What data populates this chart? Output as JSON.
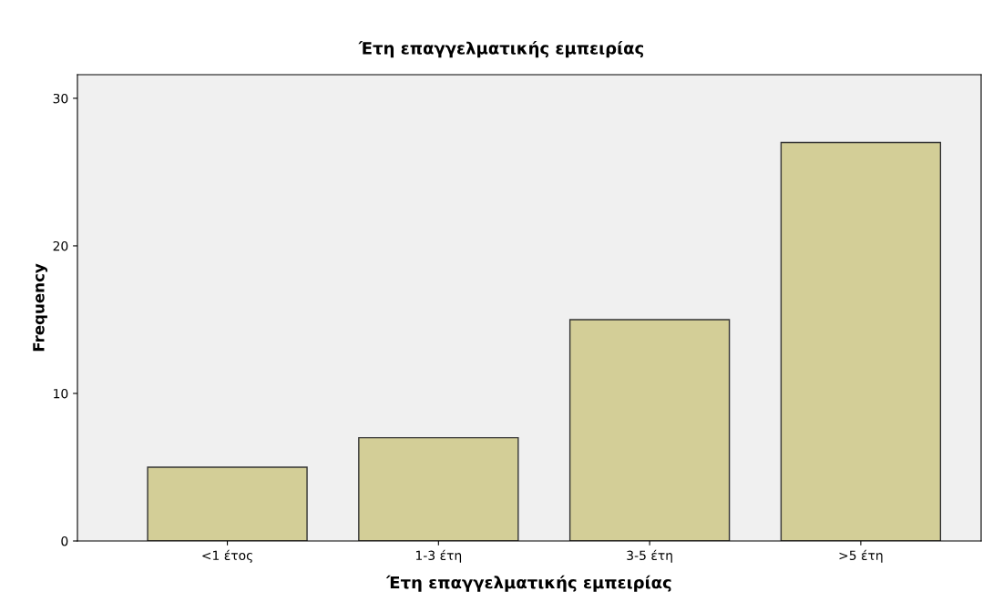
{
  "chart_data": {
    "type": "bar",
    "title": "Έτη επαγγελματικής εμπειρίας",
    "xlabel": "Έτη επαγγελματικής εμπειρίας",
    "ylabel": "Frequency",
    "categories": [
      "<1 έτος",
      "1-3 έτη",
      "3-5 έτη",
      ">5 έτη"
    ],
    "values": [
      5,
      7,
      15,
      27
    ],
    "color": "#d3ce97",
    "ylim": [
      0,
      31.6
    ],
    "yticks": [
      0,
      10,
      20,
      30
    ],
    "grid": false,
    "legend": false
  }
}
